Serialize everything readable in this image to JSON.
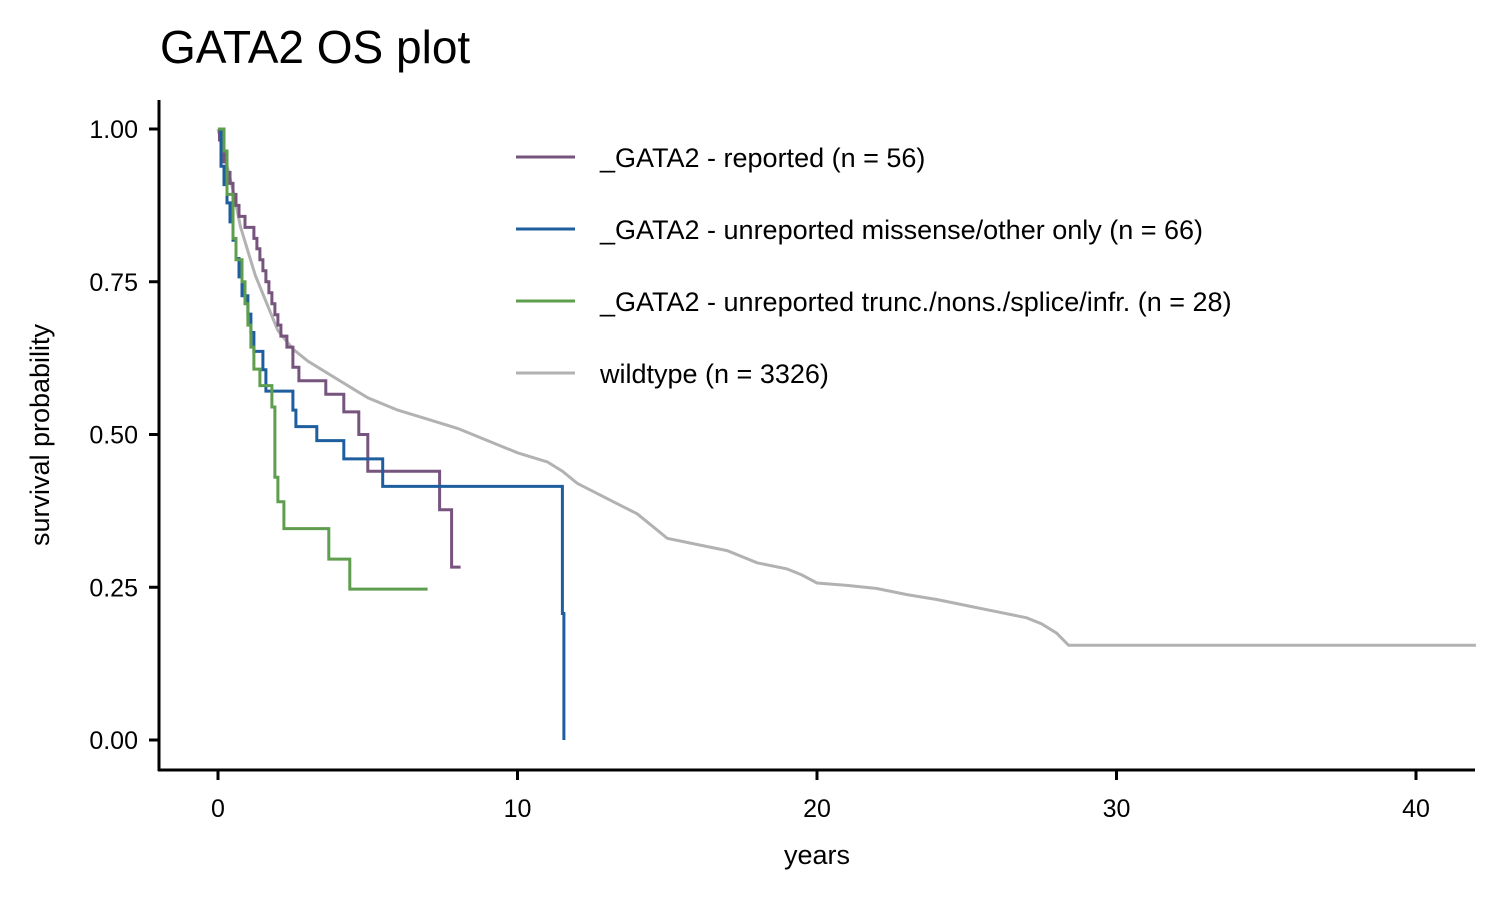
{
  "chart_data": {
    "type": "line",
    "title": "GATA2 OS plot",
    "xlabel": "years",
    "ylabel": "survival probability",
    "xlim": [
      -2,
      42
    ],
    "ylim": [
      -0.05,
      1.05
    ],
    "x_ticks": [
      0,
      10,
      20,
      30,
      40
    ],
    "x_tick_labels": [
      "0",
      "10",
      "20",
      "30",
      "40"
    ],
    "y_ticks": [
      0,
      0.25,
      0.5,
      0.75,
      1.0
    ],
    "y_tick_labels": [
      "0.00",
      "0.25",
      "0.50",
      "0.75",
      "1.00"
    ],
    "grid": false,
    "legend_position": "top-right",
    "series": [
      {
        "name": "_GATA2 - reported (n = 56)",
        "color": "#76547E",
        "step": true,
        "x": [
          0,
          0.05,
          0.1,
          0.2,
          0.3,
          0.4,
          0.5,
          0.6,
          0.7,
          0.8,
          0.9,
          1.0,
          1.2,
          1.3,
          1.4,
          1.5,
          1.6,
          1.7,
          1.8,
          1.9,
          2.0,
          2.1,
          2.3,
          2.5,
          2.7,
          3.6,
          4.2,
          4.7,
          5.0,
          6.7,
          7.4,
          7.8,
          8.0,
          8.1
        ],
        "y": [
          1.0,
          0.982,
          0.964,
          0.946,
          0.929,
          0.911,
          0.893,
          0.875,
          0.857,
          0.857,
          0.839,
          0.839,
          0.821,
          0.804,
          0.786,
          0.768,
          0.75,
          0.732,
          0.714,
          0.696,
          0.679,
          0.661,
          0.643,
          0.61,
          0.588,
          0.566,
          0.537,
          0.5,
          0.44,
          0.44,
          0.377,
          0.283,
          0.283,
          0.283
        ]
      },
      {
        "name": "_GATA2 - unreported missense/other only (n = 66)",
        "color": "#1F5E9E",
        "step": true,
        "x": [
          0,
          0.1,
          0.2,
          0.3,
          0.4,
          0.5,
          0.6,
          0.7,
          0.8,
          1.0,
          1.1,
          1.2,
          1.3,
          1.5,
          1.6,
          2.0,
          2.5,
          2.6,
          3.3,
          4.2,
          5.5,
          11.3,
          11.5,
          11.55
        ],
        "y": [
          1.0,
          0.939,
          0.909,
          0.879,
          0.848,
          0.818,
          0.788,
          0.758,
          0.727,
          0.697,
          0.667,
          0.636,
          0.636,
          0.606,
          0.571,
          0.571,
          0.54,
          0.513,
          0.49,
          0.46,
          0.415,
          0.415,
          0.207,
          0.0
        ]
      },
      {
        "name": "_GATA2 - unreported trunc./nons./splice/infr. (n = 28)",
        "color": "#5F9E4E",
        "step": true,
        "x": [
          0,
          0.2,
          0.3,
          0.5,
          0.6,
          0.8,
          0.9,
          1.0,
          1.1,
          1.2,
          1.4,
          1.5,
          1.8,
          1.9,
          2.0,
          2.2,
          2.5,
          3.7,
          4.4,
          5.0,
          7.0
        ],
        "y": [
          1.0,
          0.964,
          0.893,
          0.821,
          0.786,
          0.75,
          0.714,
          0.679,
          0.643,
          0.607,
          0.58,
          0.58,
          0.545,
          0.43,
          0.39,
          0.346,
          0.346,
          0.296,
          0.247,
          0.247,
          0.247
        ]
      },
      {
        "name": "wildtype (n = 3326)",
        "color": "#B2B2B2",
        "step": false,
        "x": [
          0,
          0.25,
          0.5,
          0.75,
          1.0,
          1.25,
          1.5,
          1.75,
          2.0,
          2.5,
          3.0,
          3.5,
          4.0,
          4.5,
          5.0,
          6.0,
          7.0,
          8.0,
          9.0,
          10.0,
          11.0,
          11.5,
          12.0,
          13.0,
          14.0,
          14.5,
          15.0,
          16.0,
          17.0,
          18.0,
          19.0,
          19.5,
          20.0,
          21.0,
          22.0,
          23.0,
          24.0,
          25.0,
          26.0,
          27.0,
          27.5,
          28.0,
          28.4,
          29.0,
          35.0,
          42.0
        ],
        "y": [
          1.0,
          0.95,
          0.9,
          0.84,
          0.8,
          0.76,
          0.73,
          0.7,
          0.67,
          0.64,
          0.62,
          0.605,
          0.59,
          0.575,
          0.56,
          0.54,
          0.525,
          0.51,
          0.49,
          0.47,
          0.455,
          0.44,
          0.42,
          0.395,
          0.37,
          0.35,
          0.33,
          0.32,
          0.31,
          0.29,
          0.28,
          0.27,
          0.257,
          0.253,
          0.248,
          0.238,
          0.23,
          0.22,
          0.21,
          0.2,
          0.19,
          0.175,
          0.155,
          0.155,
          0.155,
          0.155
        ]
      }
    ]
  }
}
